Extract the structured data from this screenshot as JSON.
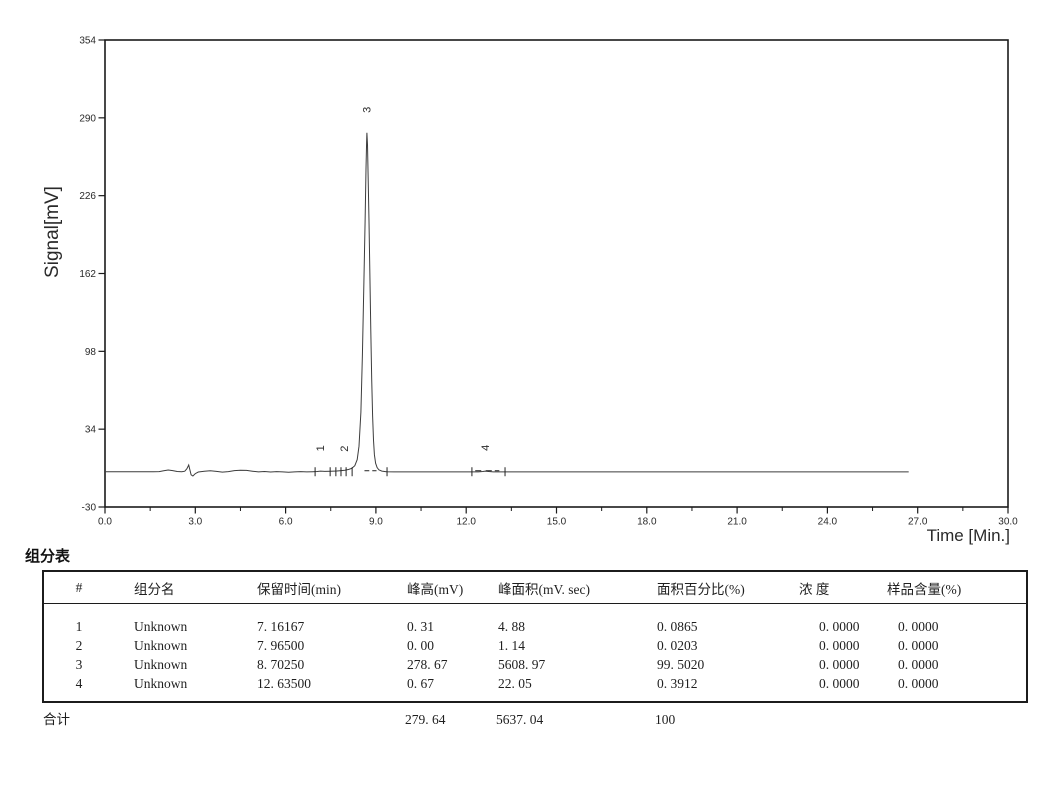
{
  "chart_data": {
    "type": "line",
    "title": "",
    "xlabel": "Time [Min.]",
    "ylabel": "Signal[mV]",
    "xlim": [
      0,
      30
    ],
    "ylim": [
      -30,
      354
    ],
    "x_ticks": [
      "0.0",
      "3.0",
      "6.0",
      "9.0",
      "12.0",
      "15.0",
      "18.0",
      "21.0",
      "24.0",
      "27.0",
      "30.0"
    ],
    "x_minor_step": 1.5,
    "y_ticks": [
      "354",
      "290",
      "226",
      "162",
      "98",
      "34",
      "-30"
    ],
    "grid": "off",
    "legend": "none",
    "line_color": "#3c3c3c",
    "frame_color": "#1a1a1a",
    "baseline_mV": -1,
    "trace_end_min": 26.7,
    "peaks": [
      {
        "number": "1",
        "retention_min": 7.16167,
        "height_mV": 0.31,
        "area_mV_sec": 4.88,
        "area_percent": 0.0865
      },
      {
        "number": "2",
        "retention_min": 7.965,
        "height_mV": 0.0,
        "area_mV_sec": 1.14,
        "area_percent": 0.0203
      },
      {
        "number": "3",
        "retention_min": 8.7025,
        "height_mV": 278.67,
        "area_mV_sec": 5608.97,
        "area_percent": 99.502
      },
      {
        "number": "4",
        "retention_min": 12.635,
        "height_mV": 0.67,
        "area_mV_sec": 22.05,
        "area_percent": 0.3912
      }
    ],
    "integration_tick_times": [
      6.98,
      7.48,
      7.67,
      7.84,
      8.01,
      8.21,
      9.37,
      12.19,
      13.29
    ],
    "integration_dash_segments": [
      [
        8.62,
        8.78
      ],
      [
        8.88,
        9.02
      ],
      [
        12.3,
        12.5
      ],
      [
        12.65,
        12.85
      ],
      [
        12.95,
        13.1
      ]
    ],
    "trace": [
      [
        0,
        -1
      ],
      [
        0.6,
        -1
      ],
      [
        1.2,
        -1
      ],
      [
        1.6,
        -1
      ],
      [
        1.8,
        -0.9
      ],
      [
        1.95,
        -0.2
      ],
      [
        2.1,
        0.4
      ],
      [
        2.25,
        -0.1
      ],
      [
        2.4,
        -0.8
      ],
      [
        2.55,
        -1
      ],
      [
        2.65,
        -0.6
      ],
      [
        2.72,
        1.5
      ],
      [
        2.78,
        4.5
      ],
      [
        2.82,
        0.5
      ],
      [
        2.86,
        -3.5
      ],
      [
        2.92,
        -4.5
      ],
      [
        3.0,
        -2.5
      ],
      [
        3.1,
        -1.2
      ],
      [
        3.3,
        -0.6
      ],
      [
        3.5,
        -0.2
      ],
      [
        3.7,
        -0.7
      ],
      [
        3.9,
        -1.3
      ],
      [
        4.1,
        -0.9
      ],
      [
        4.3,
        -0.1
      ],
      [
        4.5,
        0.3
      ],
      [
        4.7,
        0.1
      ],
      [
        4.9,
        -0.6
      ],
      [
        5.1,
        -1.1
      ],
      [
        5.3,
        -0.8
      ],
      [
        5.5,
        -1.2
      ],
      [
        5.7,
        -0.9
      ],
      [
        5.9,
        -1.1
      ],
      [
        6.1,
        -1.4
      ],
      [
        6.3,
        -1.1
      ],
      [
        6.5,
        -0.9
      ],
      [
        6.7,
        -1.1
      ],
      [
        6.9,
        -1
      ],
      [
        7.05,
        -0.8
      ],
      [
        7.16,
        -0.5
      ],
      [
        7.3,
        -0.7
      ],
      [
        7.5,
        -0.6
      ],
      [
        7.7,
        -0.4
      ],
      [
        7.85,
        -0.1
      ],
      [
        7.97,
        0.3
      ],
      [
        8.1,
        0.9
      ],
      [
        8.2,
        1.8
      ],
      [
        8.3,
        4
      ],
      [
        8.38,
        9
      ],
      [
        8.44,
        20
      ],
      [
        8.5,
        48
      ],
      [
        8.55,
        95
      ],
      [
        8.6,
        155
      ],
      [
        8.64,
        205
      ],
      [
        8.67,
        248
      ],
      [
        8.69,
        270
      ],
      [
        8.7025,
        277.7
      ],
      [
        8.72,
        268
      ],
      [
        8.74,
        243
      ],
      [
        8.77,
        205
      ],
      [
        8.8,
        160
      ],
      [
        8.83,
        115
      ],
      [
        8.86,
        75
      ],
      [
        8.89,
        45
      ],
      [
        8.92,
        25
      ],
      [
        8.95,
        13
      ],
      [
        8.99,
        6
      ],
      [
        9.04,
        2.5
      ],
      [
        9.1,
        0.5
      ],
      [
        9.2,
        -0.5
      ],
      [
        9.35,
        -1
      ],
      [
        9.6,
        -1.1
      ],
      [
        10,
        -1.1
      ],
      [
        11,
        -1.1
      ],
      [
        12,
        -1.1
      ],
      [
        12.4,
        -1.1
      ],
      [
        12.55,
        -0.8
      ],
      [
        12.635,
        -0.45
      ],
      [
        12.75,
        -0.8
      ],
      [
        12.9,
        -1.1
      ],
      [
        13.3,
        -1.1
      ],
      [
        14,
        -1.1
      ],
      [
        16,
        -1.1
      ],
      [
        18,
        -1.1
      ],
      [
        20,
        -1.1
      ],
      [
        22,
        -1.1
      ],
      [
        24,
        -1.1
      ],
      [
        26,
        -1.1
      ],
      [
        26.7,
        -1.1
      ]
    ]
  },
  "table": {
    "title": "组分表",
    "headers": [
      "#",
      "组分名",
      "保留时间(min)",
      "峰高(mV)",
      "峰面积(mV. sec)",
      "面积百分比(%)",
      "浓 度",
      "样品含量(%)"
    ],
    "rows": [
      [
        "1",
        "Unknown",
        "7. 16167",
        "0. 31",
        "4. 88",
        "0. 0865",
        "0. 0000",
        "0. 0000"
      ],
      [
        "2",
        "Unknown",
        "7. 96500",
        "0. 00",
        "1. 14",
        "0. 0203",
        "0. 0000",
        "0. 0000"
      ],
      [
        "3",
        "Unknown",
        "8. 70250",
        "278. 67",
        "5608. 97",
        "99. 5020",
        "0. 0000",
        "0. 0000"
      ],
      [
        "4",
        "Unknown",
        "12. 63500",
        "0. 67",
        "22. 05",
        "0. 3912",
        "0. 0000",
        "0. 0000"
      ]
    ],
    "total_row": [
      "合计",
      "",
      "",
      "279. 64",
      "5637. 04",
      "100",
      "",
      ""
    ]
  }
}
